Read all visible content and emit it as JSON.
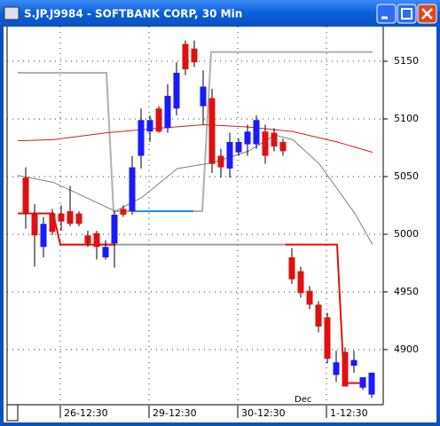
{
  "chart_data": {
    "type": "candlestick",
    "title": "S.JP.J9984 - SOFTBANK CORP, 30 Min",
    "annotation": "Dec",
    "up_color": "#1a1aff",
    "down_color": "#e01010",
    "candles": {
      "open": [
        5049,
        5018,
        4989,
        5018,
        5018,
        5020,
        5018,
        4999,
        5001,
        4980,
        4992,
        5022,
        5020,
        5068,
        5089,
        5109,
        5092,
        5109,
        5165,
        5161,
        5111,
        5118,
        5068,
        5057,
        5071,
        5078,
        5078,
        5089,
        5088,
        5080,
        4980,
        4968,
        4951,
        4939,
        4928,
        4878,
        4898,
        4886,
        4867,
        4861
      ],
      "high": [
        5058,
        5026,
        5015,
        5022,
        5025,
        5042,
        5020,
        5003,
        5003,
        4995,
        5020,
        5025,
        5068,
        5109,
        5103,
        5111,
        5130,
        5149,
        5168,
        5168,
        5142,
        5126,
        5074,
        5088,
        5083,
        5095,
        5103,
        5095,
        5092,
        5083,
        4988,
        4972,
        4955,
        4942,
        4932,
        4899,
        4902,
        4899,
        4876,
        4880
      ],
      "low": [
        5005,
        4972,
        4980,
        4999,
        5003,
        5007,
        5007,
        4989,
        4978,
        4978,
        4971,
        5015,
        5017,
        5057,
        5080,
        5088,
        5088,
        5103,
        5138,
        5145,
        5095,
        5053,
        5049,
        5049,
        5068,
        5068,
        5074,
        5061,
        5072,
        5068,
        4957,
        4945,
        4935,
        4915,
        4888,
        4872,
        4868,
        4880,
        4865,
        4858
      ],
      "close": [
        5018,
        4999,
        5009,
        5002,
        5011,
        5009,
        5009,
        4992,
        4989,
        4989,
        5017,
        5017,
        5058,
        5099,
        5099,
        5089,
        5120,
        5140,
        5143,
        5149,
        5128,
        5061,
        5058,
        5080,
        5080,
        5089,
        5099,
        5068,
        5076,
        5072,
        4961,
        4949,
        4939,
        4920,
        4892,
        4889,
        4868,
        4891,
        4876,
        4880
      ]
    },
    "lines": [
      {
        "color": "#b0b0b0",
        "width": 2,
        "x": [
          -0.9,
          9.1,
          9.9,
          19.9,
          20.9,
          39.1
        ],
        "values": [
          5140,
          5140,
          5020,
          5020,
          5158,
          5158
        ]
      },
      {
        "color": "#a0a0a0",
        "width": 2,
        "x": [
          3.9,
          30.1
        ],
        "values": [
          4991,
          4991
        ]
      },
      {
        "color": "#808080",
        "width": 1,
        "x": [
          -0.9,
          3.1,
          5.1,
          10.1,
          13.1,
          17.1,
          21.1,
          25.1,
          28.1,
          30.1,
          33.1,
          37.1,
          39.1
        ],
        "values": [
          5051,
          5045,
          5038,
          5020,
          5032,
          5057,
          5062,
          5072,
          5086,
          5082,
          5061,
          5018,
          4991
        ]
      },
      {
        "color": "#d02020",
        "width": 1,
        "x": [
          -0.9,
          3.1,
          9.1,
          15.1,
          20.1,
          25.1,
          30.1,
          35.1,
          39.1
        ],
        "values": [
          5081,
          5082,
          5088,
          5092,
          5095,
          5093,
          5089,
          5080,
          5071
        ]
      },
      {
        "color": "#e01010",
        "width": 2,
        "x": [
          -0.9,
          3.1,
          3.9,
          10.1,
          null,
          29.3,
          35.1,
          35.9,
          38.1
        ],
        "values": [
          5018,
          5018,
          4991,
          4991,
          null,
          4991,
          4991,
          4871,
          4871
        ]
      },
      {
        "color": "#1e90ff",
        "width": 2,
        "x": [
          12.1,
          18.9
        ],
        "values": [
          5020,
          5020
        ]
      }
    ],
    "xlim": [
      -2.1,
      40.3
    ],
    "ylim": [
      4853,
      5180
    ],
    "xticks": [
      {
        "value": 3.9,
        "label": "26-12:30"
      },
      {
        "value": 13.9,
        "label": "29-12:30"
      },
      {
        "value": 23.9,
        "label": "30-12:30"
      },
      {
        "value": 33.9,
        "label": "1-12:30"
      }
    ],
    "yticks": [
      4900,
      4950,
      5000,
      5050,
      5100,
      5150
    ],
    "grid": true
  }
}
